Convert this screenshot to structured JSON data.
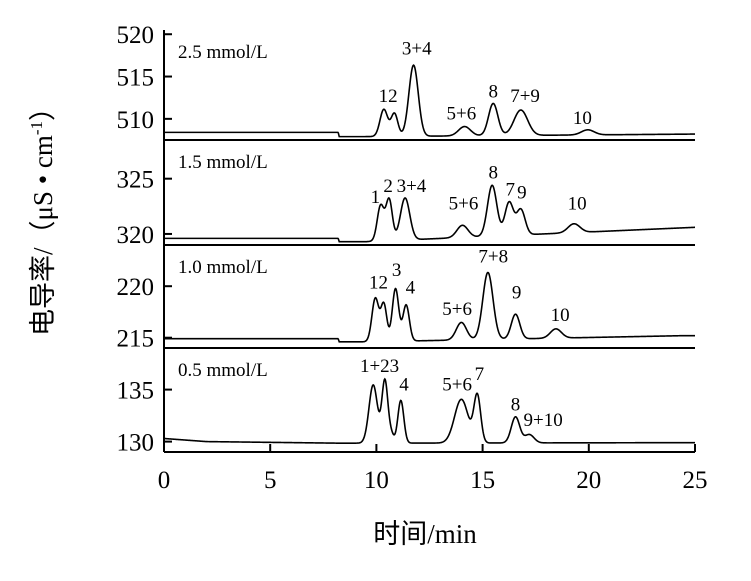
{
  "chart_data": {
    "type": "line",
    "xlabel": "时间/min",
    "ylabel": "电导率/（μS • cm",
    "ylabel_sup": "-1",
    "ylabel_close": "）",
    "xlim": [
      0,
      25
    ],
    "x_ticks": [
      0,
      5,
      10,
      15,
      20,
      25
    ],
    "grid": false,
    "panels": [
      {
        "label": "2.5 mmol/L",
        "ylim": [
          507.5,
          520.5
        ],
        "y_ticks": [
          510,
          515,
          520
        ],
        "baseline": [
          {
            "x": 0,
            "y": 508.4
          },
          {
            "x": 8.2,
            "y": 508.4
          },
          {
            "x": 8.25,
            "y": 507.9
          },
          {
            "x": 9.5,
            "y": 507.9
          },
          {
            "x": 25,
            "y": 508.2
          }
        ],
        "peaks": [
          {
            "label": "1",
            "t": 10.35,
            "height": 3.2,
            "width": 0.18
          },
          {
            "label": "2",
            "t": 10.85,
            "height": 2.7,
            "width": 0.16
          },
          {
            "label": "3+4",
            "t": 11.75,
            "height": 8.4,
            "width": 0.22
          },
          {
            "label": "5+6",
            "t": 14.15,
            "height": 1.1,
            "width": 0.28
          },
          {
            "label": "8",
            "t": 15.5,
            "height": 3.8,
            "width": 0.22
          },
          {
            "label": "7+9",
            "t": 16.8,
            "height": 3.0,
            "width": 0.32
          },
          {
            "label": "10",
            "t": 19.95,
            "height": 0.6,
            "width": 0.3
          }
        ],
        "peak_labels": [
          {
            "text": "12",
            "x": 10.55,
            "y": 512.0
          },
          {
            "text": "3+4",
            "x": 11.9,
            "y": 517.6
          },
          {
            "text": "5+6",
            "x": 14.0,
            "y": 509.9
          },
          {
            "text": "8",
            "x": 15.5,
            "y": 512.5
          },
          {
            "text": "7+9",
            "x": 17.0,
            "y": 512.0
          },
          {
            "text": "10",
            "x": 19.7,
            "y": 509.4
          }
        ]
      },
      {
        "label": "1.5 mmol/L",
        "ylim": [
          319.0,
          328.5
        ],
        "y_ticks": [
          320,
          325
        ],
        "baseline": [
          {
            "x": 0,
            "y": 319.6
          },
          {
            "x": 8.2,
            "y": 319.6
          },
          {
            "x": 8.25,
            "y": 319.3
          },
          {
            "x": 9.5,
            "y": 319.3
          },
          {
            "x": 25,
            "y": 320.6
          }
        ],
        "peaks": [
          {
            "label": "1",
            "t": 10.2,
            "height": 3.2,
            "width": 0.16
          },
          {
            "label": "2",
            "t": 10.6,
            "height": 3.7,
            "width": 0.15
          },
          {
            "label": "3+4",
            "t": 11.35,
            "height": 3.8,
            "width": 0.22
          },
          {
            "label": "5+6",
            "t": 14.05,
            "height": 1.1,
            "width": 0.26
          },
          {
            "label": "8",
            "t": 15.45,
            "height": 4.6,
            "width": 0.22
          },
          {
            "label": "7",
            "t": 16.25,
            "height": 3.0,
            "width": 0.2
          },
          {
            "label": "9",
            "t": 16.8,
            "height": 2.3,
            "width": 0.2
          },
          {
            "label": "10",
            "t": 19.3,
            "height": 0.8,
            "width": 0.28
          }
        ],
        "peak_labels": [
          {
            "text": "1",
            "x": 9.95,
            "y": 322.8
          },
          {
            "text": "2",
            "x": 10.55,
            "y": 323.8
          },
          {
            "text": "3+4",
            "x": 11.65,
            "y": 323.8
          },
          {
            "text": "5+6",
            "x": 14.1,
            "y": 322.2
          },
          {
            "text": "8",
            "x": 15.5,
            "y": 325.0
          },
          {
            "text": "7",
            "x": 16.3,
            "y": 323.5
          },
          {
            "text": "9",
            "x": 16.85,
            "y": 323.2
          },
          {
            "text": "10",
            "x": 19.45,
            "y": 322.2
          }
        ]
      },
      {
        "label": "1.0 mmol/L",
        "ylim": [
          214.0,
          224.0
        ],
        "y_ticks": [
          215,
          220
        ],
        "baseline": [
          {
            "x": 0,
            "y": 214.9
          },
          {
            "x": 8.2,
            "y": 214.9
          },
          {
            "x": 8.25,
            "y": 214.6
          },
          {
            "x": 9.5,
            "y": 214.6
          },
          {
            "x": 24.5,
            "y": 215.2
          }
        ],
        "peaks": [
          {
            "label": "1",
            "t": 9.95,
            "height": 4.2,
            "width": 0.16
          },
          {
            "label": "2",
            "t": 10.35,
            "height": 3.6,
            "width": 0.14
          },
          {
            "label": "3",
            "t": 10.9,
            "height": 5.1,
            "width": 0.15
          },
          {
            "label": "4",
            "t": 11.4,
            "height": 3.5,
            "width": 0.15
          },
          {
            "label": "5+6",
            "t": 14.0,
            "height": 1.7,
            "width": 0.24
          },
          {
            "label": "7+8",
            "t": 15.25,
            "height": 6.5,
            "width": 0.24
          },
          {
            "label": "9",
            "t": 16.55,
            "height": 2.4,
            "width": 0.2
          },
          {
            "label": "10",
            "t": 18.45,
            "height": 0.9,
            "width": 0.26
          }
        ],
        "peak_labels": [
          {
            "text": "12",
            "x": 10.1,
            "y": 219.8
          },
          {
            "text": "3",
            "x": 10.95,
            "y": 221.0
          },
          {
            "text": "4",
            "x": 11.6,
            "y": 219.3
          },
          {
            "text": "5+6",
            "x": 13.8,
            "y": 217.2
          },
          {
            "text": "7+8",
            "x": 15.5,
            "y": 222.3
          },
          {
            "text": "9",
            "x": 16.6,
            "y": 218.8
          },
          {
            "text": "10",
            "x": 18.65,
            "y": 216.6
          }
        ]
      },
      {
        "label": "0.5 mmol/L",
        "ylim": [
          129.0,
          139.0
        ],
        "y_ticks": [
          130,
          135
        ],
        "baseline": [
          {
            "x": 0,
            "y": 130.3
          },
          {
            "x": 2,
            "y": 130.0
          },
          {
            "x": 8.2,
            "y": 129.85
          },
          {
            "x": 9.5,
            "y": 129.85
          },
          {
            "x": 25,
            "y": 129.9
          }
        ],
        "peaks": [
          {
            "label": "1",
            "t": 9.85,
            "height": 5.6,
            "width": 0.2
          },
          {
            "label": "2",
            "t": 10.4,
            "height": 6.0,
            "width": 0.14
          },
          {
            "label": "3",
            "t": 10.7,
            "height": 0.8,
            "width": 0.12
          },
          {
            "label": "4",
            "t": 11.15,
            "height": 4.1,
            "width": 0.14
          },
          {
            "label": "5+6",
            "t": 14.0,
            "height": 4.2,
            "width": 0.32
          },
          {
            "label": "7",
            "t": 14.75,
            "height": 4.5,
            "width": 0.16
          },
          {
            "label": "8",
            "t": 16.55,
            "height": 2.5,
            "width": 0.2
          },
          {
            "label": "9+10",
            "t": 17.2,
            "height": 0.8,
            "width": 0.22
          }
        ],
        "peak_labels": [
          {
            "text": "1+23",
            "x": 10.15,
            "y": 136.7
          },
          {
            "text": "4",
            "x": 11.3,
            "y": 134.9
          },
          {
            "text": "5+6",
            "x": 13.8,
            "y": 134.9
          },
          {
            "text": "7",
            "x": 14.85,
            "y": 135.9
          },
          {
            "text": "8",
            "x": 16.55,
            "y": 133.0
          },
          {
            "text": "9+10",
            "x": 17.85,
            "y": 131.5
          }
        ]
      }
    ]
  }
}
